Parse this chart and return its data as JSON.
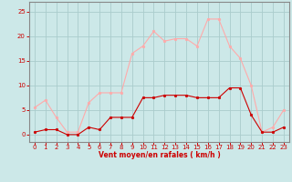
{
  "hours": [
    0,
    1,
    2,
    3,
    4,
    5,
    6,
    7,
    8,
    9,
    10,
    11,
    12,
    13,
    14,
    15,
    16,
    17,
    18,
    19,
    20,
    21,
    22,
    23
  ],
  "vent_moyen": [
    0.5,
    1.0,
    1.0,
    0.0,
    0.0,
    1.5,
    1.0,
    3.5,
    3.5,
    3.5,
    7.5,
    7.5,
    8.0,
    8.0,
    8.0,
    7.5,
    7.5,
    7.5,
    9.5,
    9.5,
    4.0,
    0.5,
    0.5,
    1.5
  ],
  "rafales": [
    5.5,
    7.0,
    3.5,
    0.5,
    0.5,
    6.5,
    8.5,
    8.5,
    8.5,
    16.5,
    18.0,
    21.0,
    19.0,
    19.5,
    19.5,
    18.0,
    23.5,
    23.5,
    18.0,
    15.5,
    10.0,
    0.5,
    1.5,
    5.0
  ],
  "color_moyen": "#cc0000",
  "color_rafales": "#ffaaaa",
  "bg_color": "#cce8e8",
  "grid_color": "#aacccc",
  "xlabel": "Vent moyen/en rafales ( km/h )",
  "ylabel_ticks": [
    0,
    5,
    10,
    15,
    20,
    25
  ],
  "ylim": [
    -1.5,
    27
  ],
  "xlim": [
    -0.5,
    23.5
  ]
}
